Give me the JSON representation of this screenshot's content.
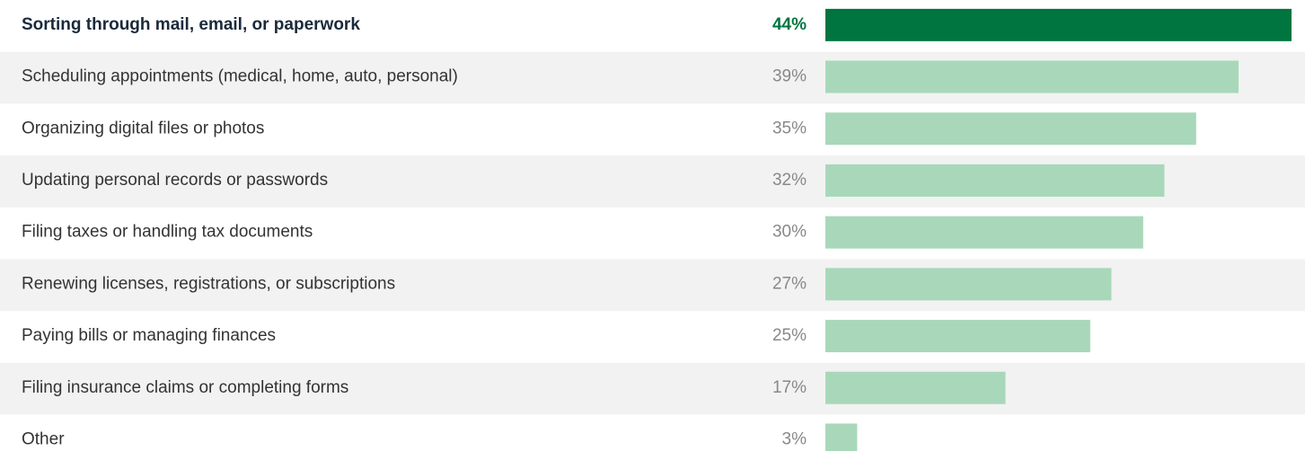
{
  "chart_data": {
    "type": "bar",
    "orientation": "horizontal",
    "categories": [
      "Sorting through mail, email, or paperwork",
      "Scheduling appointments (medical, home, auto, personal)",
      "Organizing digital files or photos",
      "Updating personal records or passwords",
      "Filing taxes or handling tax documents",
      "Renewing licenses, registrations, or subscriptions",
      "Paying bills or managing finances",
      "Filing insurance claims or completing forms",
      "Other"
    ],
    "values": [
      44,
      39,
      35,
      32,
      30,
      27,
      25,
      17,
      3
    ],
    "value_labels": [
      "44%",
      "39%",
      "35%",
      "32%",
      "30%",
      "27%",
      "25%",
      "17%",
      "3%"
    ],
    "color": "#a8d8b9",
    "highlight_color": "#00753f",
    "highlight": 0
  }
}
